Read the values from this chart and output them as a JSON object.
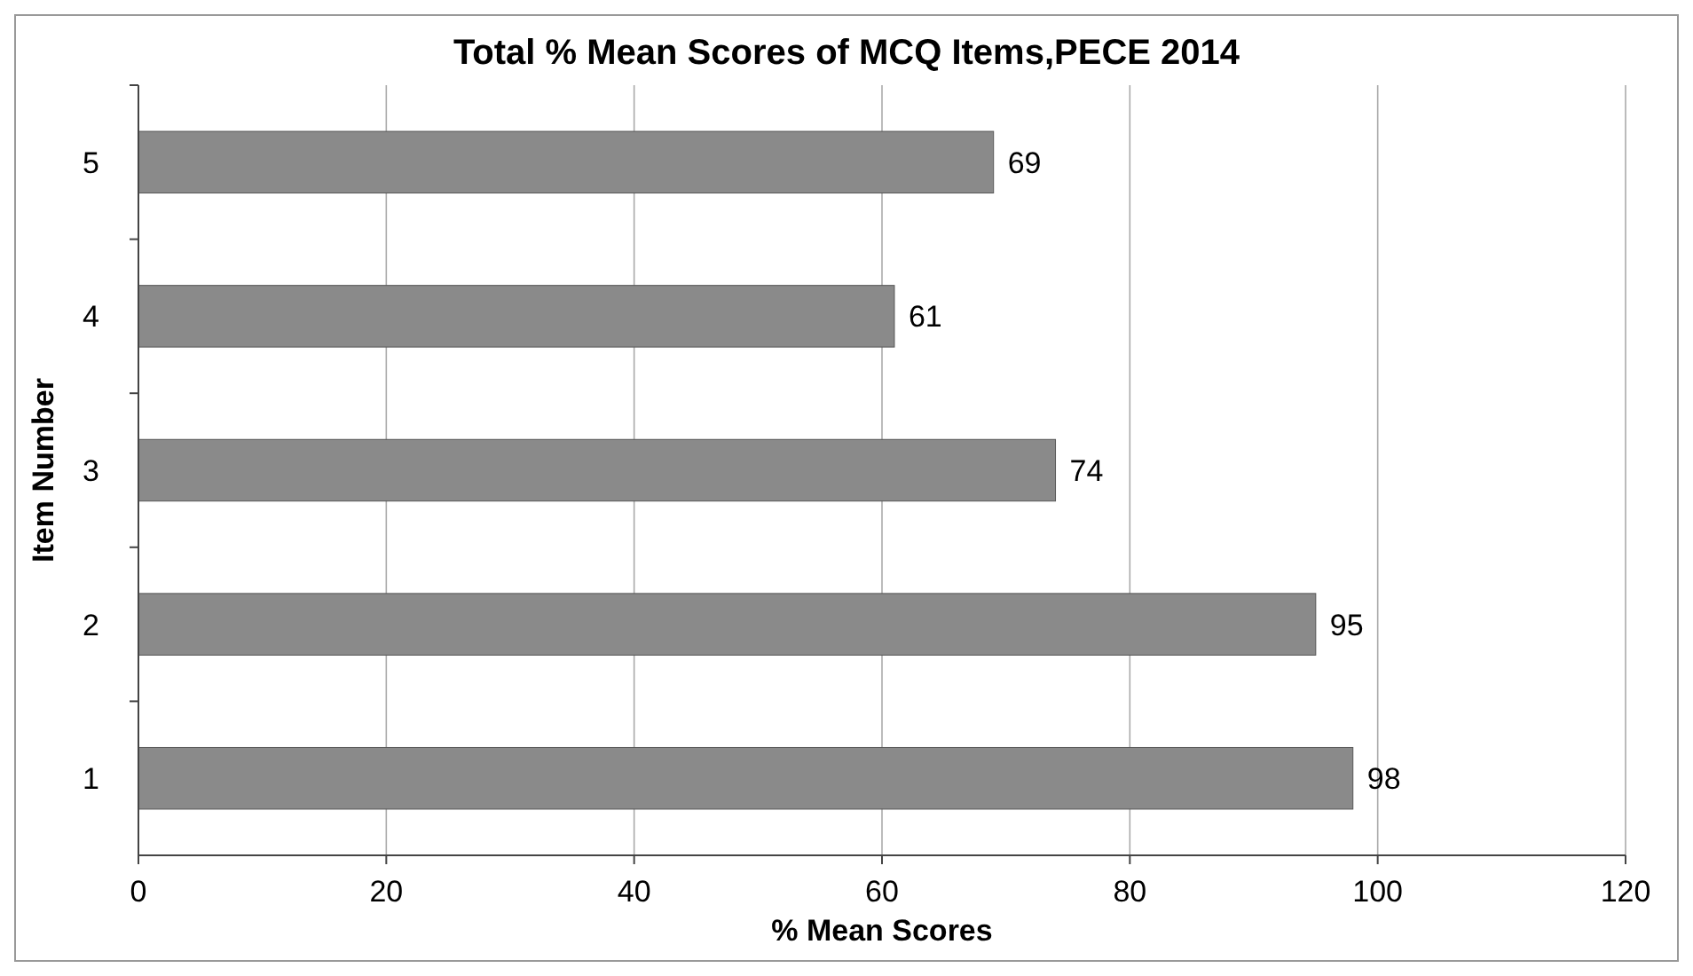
{
  "chart_data": {
    "type": "bar",
    "orientation": "horizontal",
    "title": "Total % Mean Scores of MCQ Items,PECE 2014",
    "xlabel": "% Mean Scores",
    "ylabel": "Item Number",
    "categories": [
      "5",
      "4",
      "3",
      "2",
      "1"
    ],
    "values": [
      69,
      61,
      74,
      95,
      98
    ],
    "color": "#8a8a8a",
    "data_labels": true,
    "xlim": [
      0,
      120
    ],
    "xticks": [
      0,
      20,
      40,
      60,
      80,
      100,
      120
    ],
    "grid": "x"
  }
}
